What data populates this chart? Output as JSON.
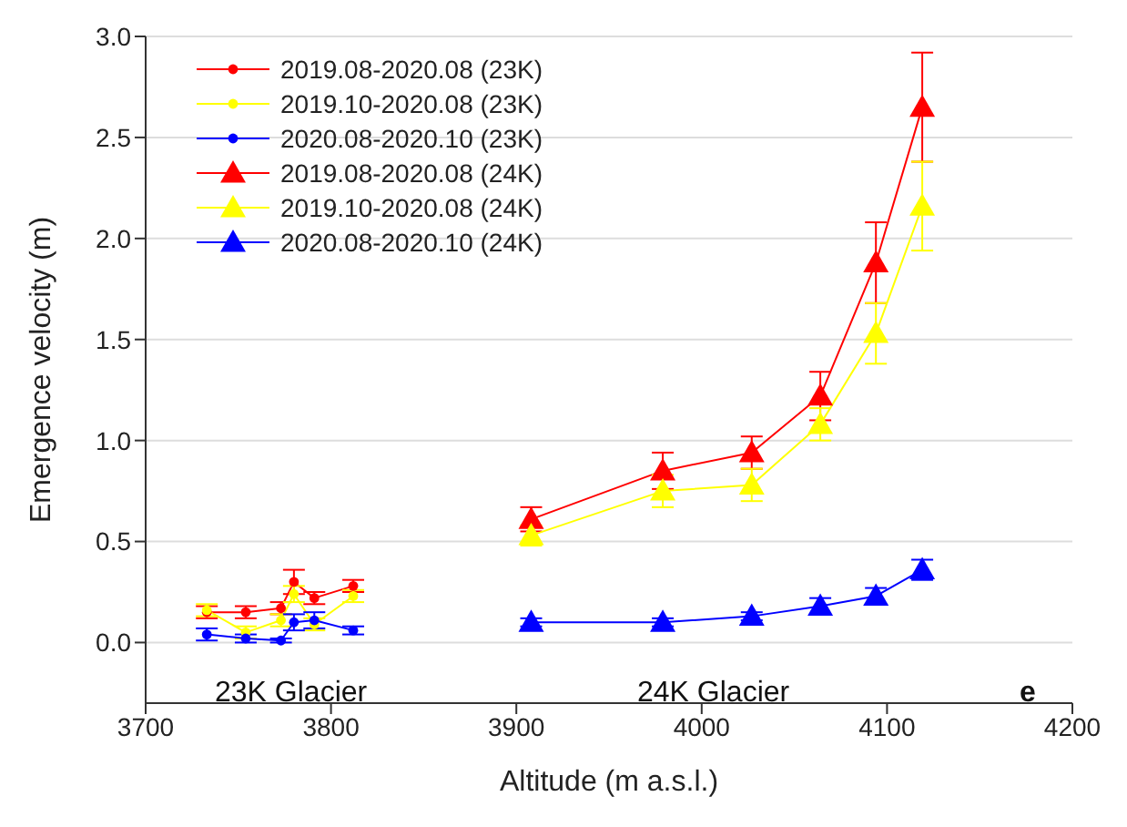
{
  "chart_data": {
    "type": "line",
    "xlabel": "Altitude (m a.s.l.)",
    "ylabel": "Emergence velocity (m)",
    "xlim": [
      3700,
      4200
    ],
    "xticks": [
      3700,
      3800,
      3900,
      4000,
      4100,
      4200
    ],
    "ylim": [
      -0.3,
      3.0
    ],
    "yticks": [
      {
        "value": 0,
        "label": "0.0"
      },
      0.5,
      {
        "value": 1,
        "label": "1.0"
      },
      1.5,
      {
        "value": 2,
        "label": "2.0"
      },
      2.5,
      {
        "value": 3,
        "label": "3.0"
      }
    ],
    "grid": "y",
    "legend": "top left",
    "series": [
      {
        "name": "2019.08-2020.08 (23K)",
        "color": "#ff0000",
        "marker": "circle",
        "x": [
          3733,
          3754,
          3773,
          3780,
          3791,
          3812
        ],
        "values": [
          0.15,
          0.15,
          0.17,
          0.3,
          0.22,
          0.28
        ],
        "errors": [
          0.03,
          0.03,
          0.03,
          0.06,
          0.03,
          0.03
        ]
      },
      {
        "name": "2019.10-2020.08 (23K)",
        "color": "#ffff00",
        "marker": "circle",
        "x": [
          3733,
          3754,
          3773,
          3780,
          3791,
          3812
        ],
        "values": [
          0.16,
          0.05,
          0.11,
          0.24,
          0.09,
          0.23
        ],
        "errors": [
          0.03,
          0.03,
          0.03,
          0.04,
          0.03,
          0.03
        ]
      },
      {
        "name": "2020.08-2020.10 (23K)",
        "color": "#0000ff",
        "marker": "circle",
        "x": [
          3733,
          3754,
          3773,
          3780,
          3791,
          3812
        ],
        "values": [
          0.04,
          0.02,
          0.01,
          0.1,
          0.11,
          0.06
        ],
        "errors": [
          0.03,
          0.02,
          0.01,
          0.04,
          0.04,
          0.02
        ]
      },
      {
        "name": "2019.08-2020.08 (24K)",
        "color": "#ff0000",
        "marker": "triangle",
        "x": [
          3908,
          3979,
          4027,
          4064,
          4094,
          4119
        ],
        "values": [
          0.61,
          0.85,
          0.94,
          1.22,
          1.88,
          2.65
        ],
        "errors": [
          0.06,
          0.09,
          0.08,
          0.12,
          0.2,
          0.27
        ]
      },
      {
        "name": "2019.10-2020.08 (24K)",
        "color": "#ffff00",
        "marker": "triangle",
        "x": [
          3908,
          3979,
          4027,
          4064,
          4094,
          4119
        ],
        "values": [
          0.53,
          0.75,
          0.78,
          1.08,
          1.53,
          2.16
        ],
        "errors": [
          0.05,
          0.08,
          0.08,
          0.08,
          0.15,
          0.22
        ]
      },
      {
        "name": "2020.08-2020.10 (24K)",
        "color": "#0000ff",
        "marker": "triangle",
        "x": [
          3908,
          3979,
          4027,
          4064,
          4094,
          4119
        ],
        "values": [
          0.1,
          0.1,
          0.13,
          0.18,
          0.23,
          0.36
        ],
        "errors": [
          0.02,
          0.02,
          0.02,
          0.04,
          0.04,
          0.05
        ]
      }
    ],
    "annotations": [
      "23K Glacier",
      "24K Glacier",
      "e"
    ]
  }
}
